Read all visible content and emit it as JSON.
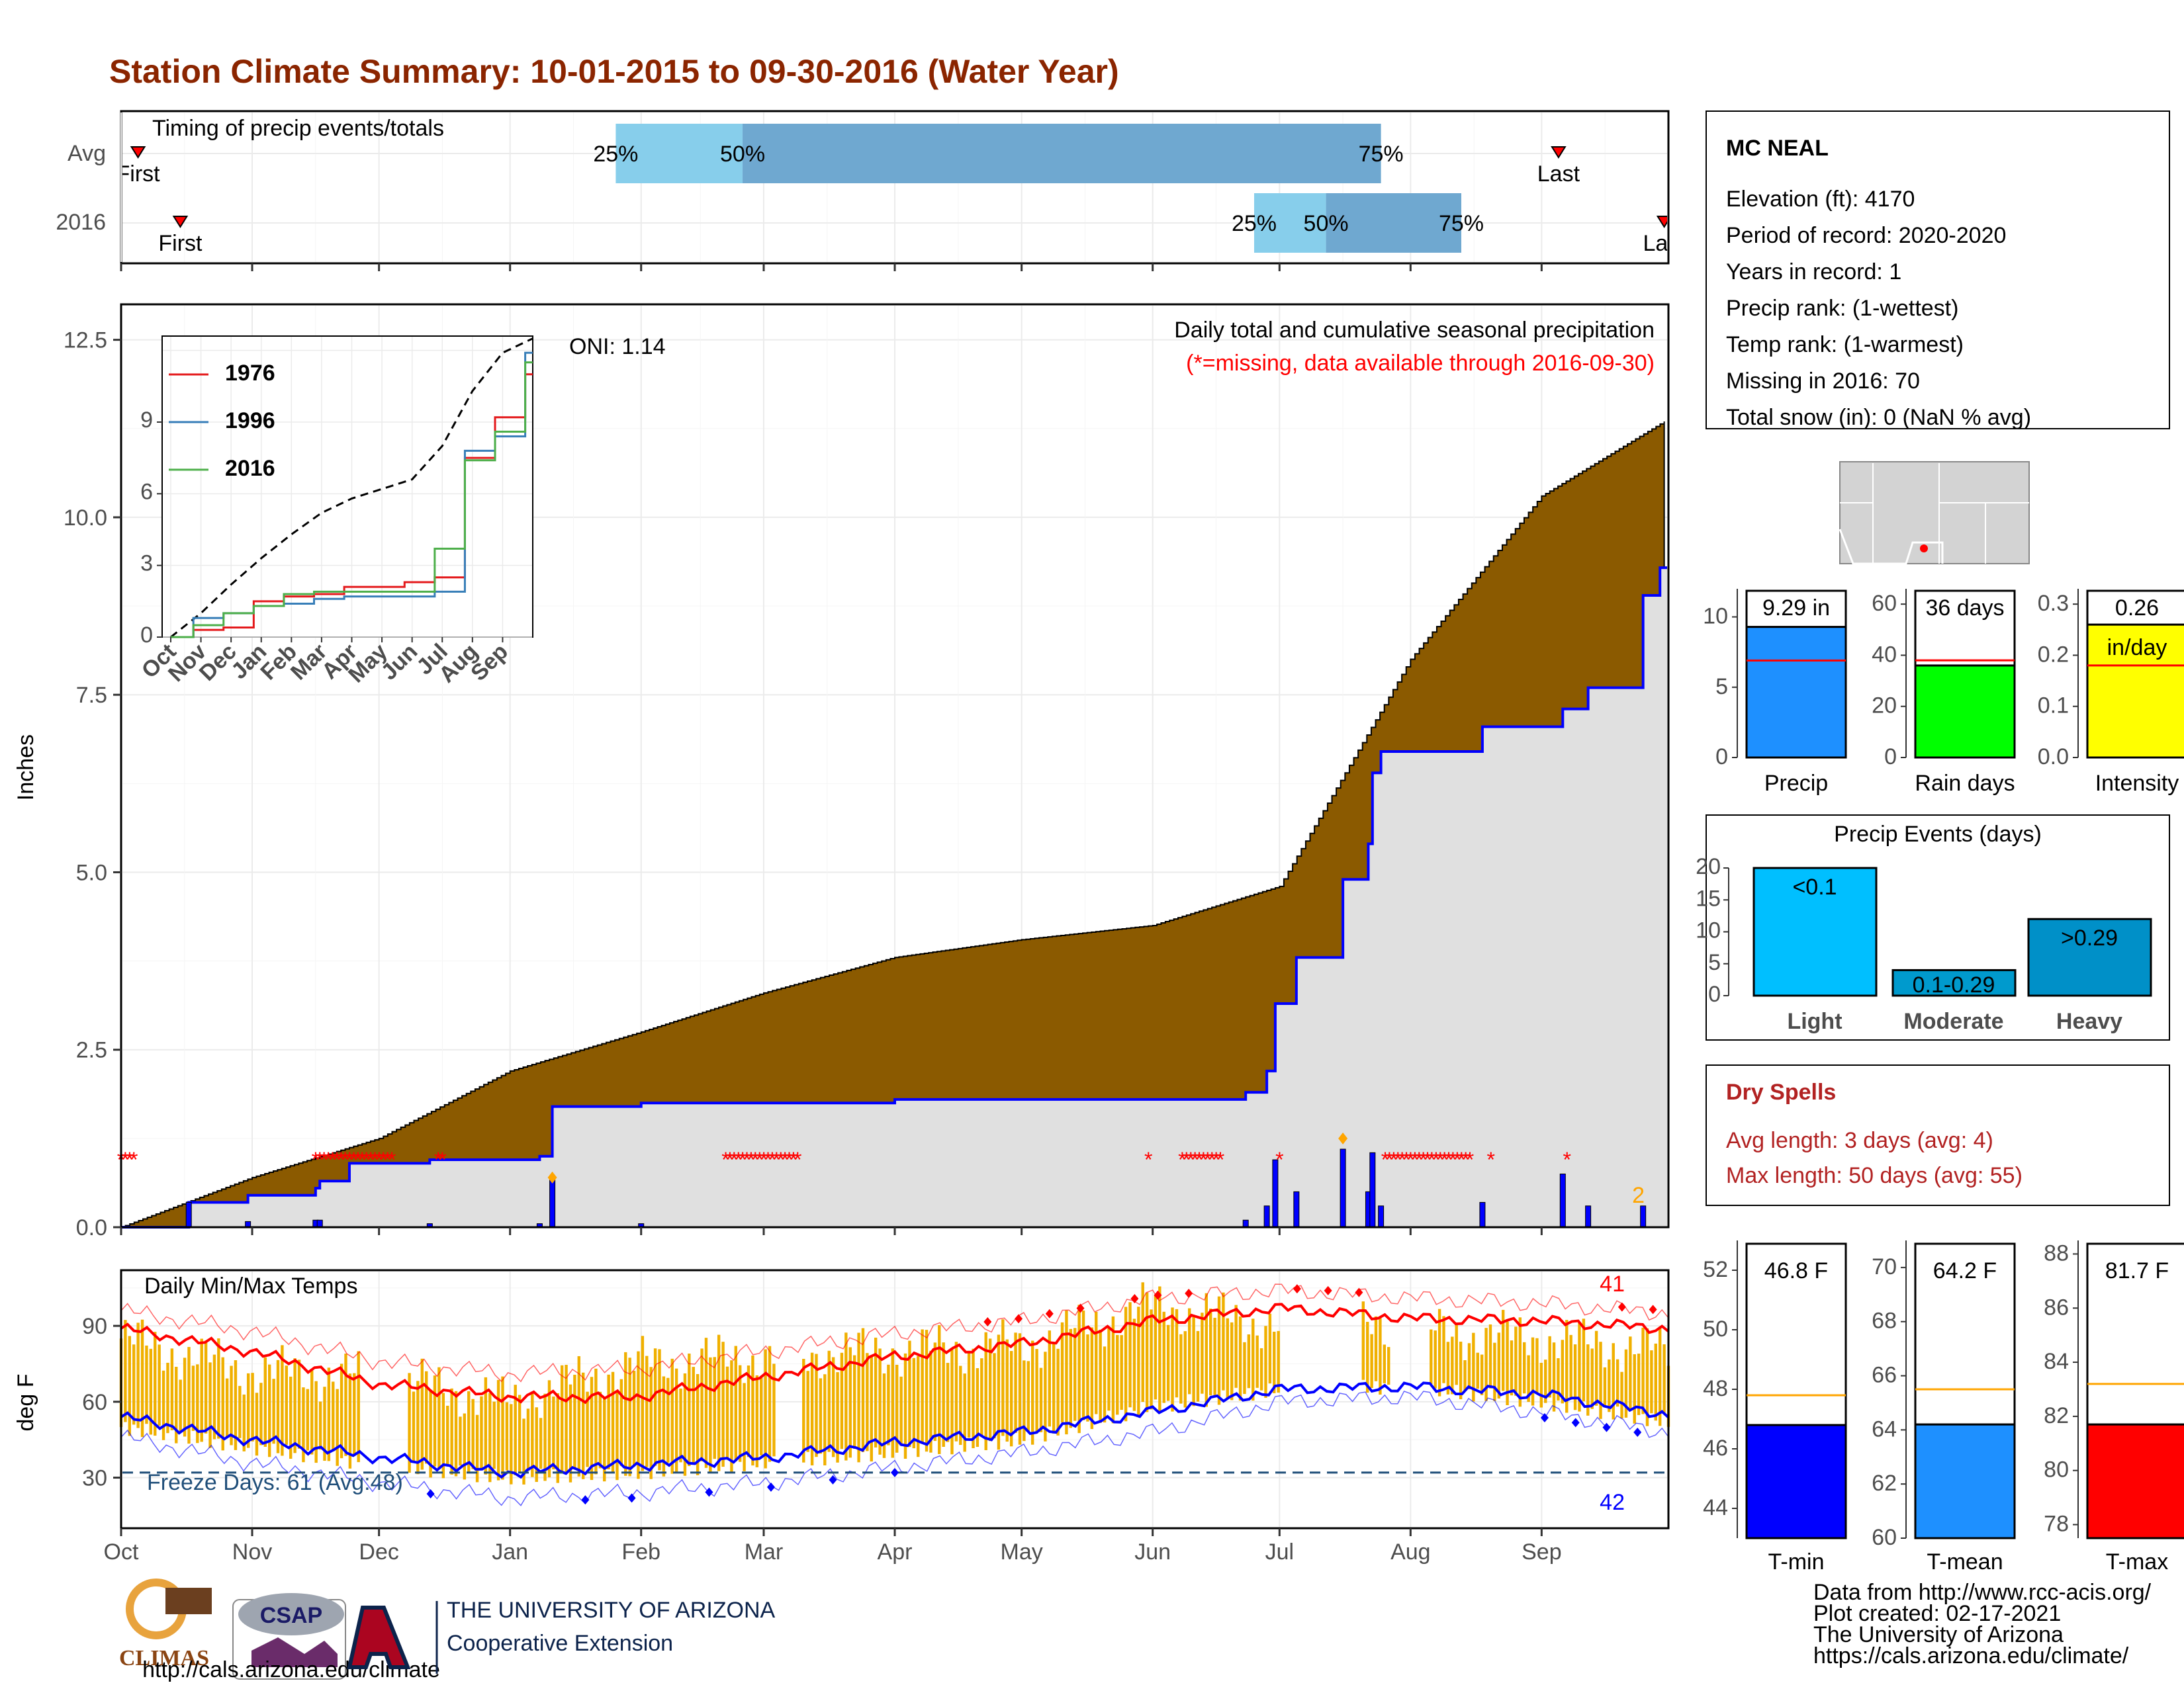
{
  "title": "Station Climate Summary: 10-01-2015 to 09-30-2016 (Water Year)",
  "timing": {
    "label": "Timing of precip events/totals",
    "rows": [
      {
        "name": "Avg",
        "first_label": "First",
        "last_label": "Last",
        "first_date": "2015-10-05",
        "last_date": "2016-09-05",
        "p25": "2016-01-26",
        "p50": "2016-02-25",
        "p75": "2016-07-25",
        "p25_label": "25%",
        "p50_label": "50%",
        "p75_label": "75%"
      },
      {
        "name": "2016",
        "first_label": "First",
        "last_label": "Last",
        "first_date": "2015-10-15",
        "last_date": "2016-09-30",
        "p25": "2016-06-25",
        "p50": "2016-07-12",
        "p75": "2016-08-13",
        "p25_label": "25%",
        "p50_label": "50%",
        "p75_label": "75%"
      }
    ],
    "colors": {
      "lower": "#87CEEB",
      "upper": "#6FA8D0",
      "marker": "#FF0000"
    }
  },
  "precip_panel": {
    "ylabel": "Inches",
    "title": "Daily total and cumulative seasonal precipitation",
    "subtitle": "(*=missing, data available through 2016-09-30)",
    "oni": "ONI: 1.14",
    "yticks": [
      "0.0",
      "2.5",
      "5.0",
      "7.5",
      "10.0",
      "12.5"
    ],
    "corner_count": "2",
    "colors": {
      "avg_fill": "#8B5A00",
      "year_fill": "#E0E0E0",
      "year_line": "#0000FF",
      "missing": "#FF0000",
      "diamond": "#FFA500"
    }
  },
  "months": [
    "Oct",
    "Nov",
    "Dec",
    "Jan",
    "Feb",
    "Mar",
    "Apr",
    "May",
    "Jun",
    "Jul",
    "Aug",
    "Sep"
  ],
  "inset": {
    "legend": [
      "1976",
      "1996",
      "2016"
    ],
    "colors": [
      "#E41A1C",
      "#377EB8",
      "#4DAF4A"
    ],
    "yticks": [
      "0",
      "3",
      "6",
      "9"
    ],
    "months": [
      "Oct",
      "Nov",
      "Dec",
      "Jan",
      "Feb",
      "Mar",
      "Apr",
      "May",
      "Jun",
      "Jul",
      "Aug",
      "Sep"
    ]
  },
  "temp_panel": {
    "ylabel": "deg F",
    "label": "Daily Min/Max Temps",
    "freeze_label": "Freeze Days: 61 (Avg:48)",
    "max_count": "41",
    "min_count": "42",
    "yticks": [
      "30",
      "60",
      "90"
    ],
    "colors": {
      "bars": "#F0B000",
      "max": "#FF0000",
      "min": "#0000FF",
      "freeze": "#1F4E79"
    }
  },
  "station": {
    "name": "MC NEAL",
    "lines": [
      "Elevation (ft): 4170",
      "Period of record: 2020-2020",
      "Years in record: 1",
      "Precip rank:  (1-wettest)",
      "Temp rank:  (1-warmest)",
      "Missing in 2016: 70",
      "Total snow (in): 0 (NaN % avg)"
    ]
  },
  "mini_bars": [
    {
      "label": "Precip",
      "value_label": "9.29 in",
      "yticks": [
        "0",
        "5",
        "10"
      ],
      "color": "#1E90FF",
      "unit": ""
    },
    {
      "label": "Rain days",
      "value_label": "36 days",
      "yticks": [
        "0",
        "20",
        "40",
        "60"
      ],
      "color": "#00FF00",
      "unit": ""
    },
    {
      "label": "Intensity",
      "value_label": "0.26",
      "unit": "in/day",
      "yticks": [
        "0.0",
        "0.1",
        "0.2",
        "0.3"
      ],
      "color": "#FFFF00"
    }
  ],
  "events": {
    "title": "Precip Events (days)",
    "categories": [
      "Light",
      "Moderate",
      "Heavy"
    ],
    "bar_labels": [
      "<0.1",
      "0.1-0.29",
      ">0.29"
    ],
    "yticks": [
      "0",
      "5",
      "10",
      "15",
      "20"
    ],
    "colors": [
      "#00BFFF",
      "#009ACD",
      "#0090C8"
    ]
  },
  "dry_spells": {
    "title": "Dry Spells",
    "lines": [
      "Avg length: 3 days (avg: 4)",
      "Max length: 50 days (avg: 55)"
    ],
    "color": "#B22222"
  },
  "temp_bars": [
    {
      "label": "T-min",
      "value_label": "46.8 F",
      "yticks": [
        "44",
        "46",
        "48",
        "50",
        "52"
      ],
      "color": "#0000FF"
    },
    {
      "label": "T-mean",
      "value_label": "64.2 F",
      "yticks": [
        "60",
        "62",
        "64",
        "66",
        "68",
        "70"
      ],
      "color": "#1E90FF"
    },
    {
      "label": "T-max",
      "value_label": "81.7 F",
      "yticks": [
        "78",
        "80",
        "82",
        "84",
        "86",
        "88"
      ],
      "color": "#FF0000"
    }
  ],
  "footer": {
    "logos": [
      "CLIMAS",
      "CSAP",
      "THE UNIVERSITY OF ARIZONA",
      "Cooperative Extension",
      "http://cals.arizona.edu/climate"
    ],
    "credits": [
      "Data from http://www.rcc-acis.org/",
      "Plot created: 02-17-2021",
      "The University of Arizona",
      "https://cals.arizona.edu/climate/"
    ]
  },
  "chart_data": [
    {
      "type": "area",
      "title": "Daily total and cumulative seasonal precipitation",
      "ylabel": "Inches",
      "ylim": [
        0,
        13
      ],
      "x": [
        "2015-10-01",
        "2015-11-01",
        "2015-12-01",
        "2016-01-01",
        "2016-02-01",
        "2016-03-01",
        "2016-04-01",
        "2016-05-01",
        "2016-06-01",
        "2016-07-01",
        "2016-08-01",
        "2016-09-01",
        "2016-09-30"
      ],
      "series": [
        {
          "name": "avg",
          "values": [
            0.0,
            0.7,
            1.25,
            2.2,
            2.75,
            3.3,
            3.8,
            4.05,
            4.25,
            4.8,
            8.0,
            10.3,
            11.35
          ]
        },
        {
          "name": "2016",
          "values": [
            0.0,
            0.45,
            0.9,
            1.2,
            1.75,
            1.75,
            1.8,
            1.8,
            1.8,
            3.8,
            6.7,
            7.3,
            9.29
          ]
        }
      ],
      "daily_events": [
        {
          "date": "2015-10-17",
          "value": 0.35
        },
        {
          "date": "2015-10-31",
          "value": 0.08
        },
        {
          "date": "2015-11-16",
          "value": 0.1
        },
        {
          "date": "2015-11-17",
          "value": 0.1
        },
        {
          "date": "2015-12-13",
          "value": 0.05
        },
        {
          "date": "2016-01-08",
          "value": 0.05
        },
        {
          "date": "2016-01-11",
          "value": 0.7
        },
        {
          "date": "2016-02-01",
          "value": 0.05
        },
        {
          "date": "2016-06-23",
          "value": 0.1
        },
        {
          "date": "2016-06-28",
          "value": 0.3
        },
        {
          "date": "2016-06-30",
          "value": 0.95
        },
        {
          "date": "2016-07-05",
          "value": 0.5
        },
        {
          "date": "2016-07-16",
          "value": 1.1
        },
        {
          "date": "2016-07-22",
          "value": 0.5
        },
        {
          "date": "2016-07-23",
          "value": 1.05
        },
        {
          "date": "2016-07-25",
          "value": 0.3
        },
        {
          "date": "2016-08-18",
          "value": 0.35
        },
        {
          "date": "2016-09-06",
          "value": 0.75
        },
        {
          "date": "2016-09-12",
          "value": 0.3
        },
        {
          "date": "2016-09-25",
          "value": 0.3
        }
      ],
      "diamonds": [
        {
          "date": "2016-01-11",
          "value": 0.7
        },
        {
          "date": "2016-07-16",
          "value": 1.25
        }
      ],
      "missing_ranges": [
        [
          "2015-10-01",
          "2015-10-04"
        ],
        [
          "2015-11-16",
          "2015-12-05"
        ],
        [
          "2015-12-15",
          "2015-12-16"
        ],
        [
          "2016-02-21",
          "2016-03-10"
        ],
        [
          "2016-05-31",
          "2016-05-31"
        ],
        [
          "2016-06-08",
          "2016-06-18"
        ],
        [
          "2016-07-01",
          "2016-07-01"
        ],
        [
          "2016-07-26",
          "2016-08-16"
        ],
        [
          "2016-08-20",
          "2016-08-20"
        ],
        [
          "2016-09-07",
          "2016-09-07"
        ]
      ]
    },
    {
      "type": "line",
      "title": "",
      "xlabel": "",
      "ylabel": "",
      "x": [
        "Oct",
        "Nov",
        "Dec",
        "Jan",
        "Feb",
        "Mar",
        "Apr",
        "May",
        "Jun",
        "Jul",
        "Aug",
        "Sep",
        "Sep-end"
      ],
      "ylim": [
        0,
        12.6
      ],
      "series": [
        {
          "name": "avg",
          "values": [
            0.0,
            1.0,
            2.2,
            3.3,
            4.3,
            5.2,
            5.8,
            6.2,
            6.6,
            8.0,
            10.3,
            11.9,
            12.5
          ]
        },
        {
          "name": "1976",
          "values": [
            0.0,
            0.3,
            0.4,
            1.5,
            1.7,
            1.8,
            2.1,
            2.1,
            2.3,
            2.5,
            7.5,
            9.2,
            11.0
          ]
        },
        {
          "name": "1996",
          "values": [
            0.0,
            0.8,
            1.0,
            1.3,
            1.4,
            1.6,
            1.7,
            1.7,
            1.7,
            1.9,
            7.8,
            8.4,
            11.9
          ]
        },
        {
          "name": "2016",
          "values": [
            0.0,
            0.5,
            1.0,
            1.3,
            1.8,
            1.9,
            1.9,
            1.9,
            1.9,
            3.7,
            7.4,
            8.6,
            11.5
          ]
        }
      ]
    },
    {
      "type": "line",
      "title": "Daily Min/Max Temps",
      "ylabel": "deg F",
      "ylim": [
        10,
        112
      ],
      "x": [
        "2015-10-01",
        "2015-11-01",
        "2015-12-01",
        "2016-01-01",
        "2016-02-01",
        "2016-03-01",
        "2016-04-01",
        "2016-05-01",
        "2016-06-01",
        "2016-07-01",
        "2016-08-01",
        "2016-09-01",
        "2016-09-30"
      ],
      "series": [
        {
          "name": "avg_max",
          "values": [
            89,
            80,
            67,
            62,
            62,
            70,
            78,
            83,
            92,
            97,
            93,
            92,
            89
          ]
        },
        {
          "name": "avg_min",
          "values": [
            54,
            45,
            38,
            32,
            35,
            38,
            44,
            48,
            56,
            65,
            66,
            63,
            55
          ]
        },
        {
          "name": "rec_max",
          "values": [
            96,
            88,
            76,
            71,
            73,
            80,
            87,
            92,
            101,
            104,
            101,
            99,
            95
          ]
        },
        {
          "name": "rec_min",
          "values": [
            46,
            36,
            28,
            22,
            24,
            28,
            34,
            40,
            48,
            60,
            62,
            56,
            48
          ]
        },
        {
          "name": "obs_max",
          "values": [
            85,
            72,
            70,
            60,
            75,
            78,
            80,
            82,
            98,
            90,
            88,
            85,
            80
          ]
        },
        {
          "name": "obs_min",
          "values": [
            50,
            42,
            35,
            30,
            32,
            36,
            40,
            45,
            58,
            65,
            66,
            60,
            52
          ]
        }
      ],
      "freeze_line": 32
    },
    {
      "type": "bar",
      "categories": [
        "Precip",
        "Rain days",
        "Intensity"
      ],
      "values": [
        9.29,
        36,
        0.26
      ],
      "averages": [
        6.9,
        38,
        0.18
      ]
    },
    {
      "type": "bar",
      "title": "Precip Events (days)",
      "categories": [
        "Light",
        "Moderate",
        "Heavy"
      ],
      "values": [
        20,
        4,
        12
      ],
      "ylim": [
        0,
        20
      ]
    },
    {
      "type": "bar",
      "categories": [
        "T-min",
        "T-mean",
        "T-max"
      ],
      "values": [
        46.8,
        64.2,
        81.7
      ],
      "averages": [
        47.8,
        65.5,
        83.2
      ]
    }
  ]
}
